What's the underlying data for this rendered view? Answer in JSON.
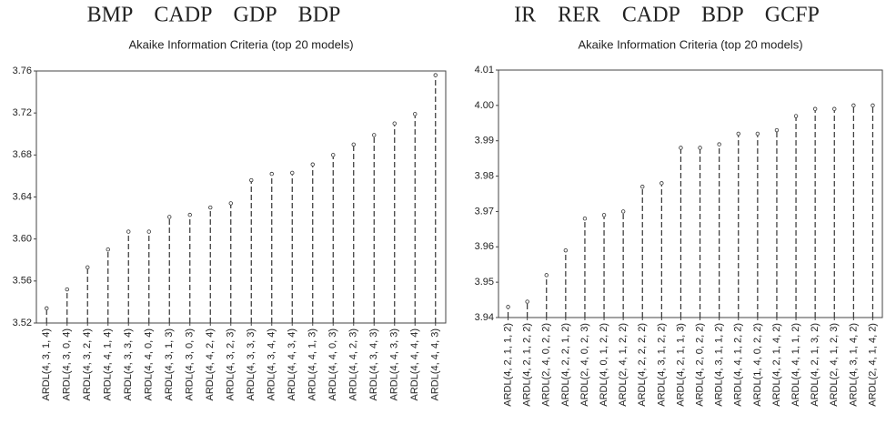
{
  "chart_data": [
    {
      "type": "lollipop",
      "title": "BMP    CADP    GDP    BDP",
      "subtitle": "Akaike Information Criteria (top 20 models)",
      "categories": [
        "ARDL(4, 3, 1, 4)",
        "ARDL(4, 3, 0, 4)",
        "ARDL(4, 3, 2, 4)",
        "ARDL(4, 4, 1, 4)",
        "ARDL(4, 3, 3, 4)",
        "ARDL(4, 4, 0, 4)",
        "ARDL(4, 3, 1, 3)",
        "ARDL(4, 3, 0, 3)",
        "ARDL(4, 4, 2, 4)",
        "ARDL(4, 3, 2, 3)",
        "ARDL(4, 3, 3, 3)",
        "ARDL(4, 3, 4, 4)",
        "ARDL(4, 4, 3, 4)",
        "ARDL(4, 4, 1, 3)",
        "ARDL(4, 4, 0, 3)",
        "ARDL(4, 4, 2, 3)",
        "ARDL(4, 3, 4, 3)",
        "ARDL(4, 4, 3, 3)",
        "ARDL(4, 4, 4, 4)",
        "ARDL(4, 4, 4, 3)"
      ],
      "values": [
        3.534,
        3.552,
        3.573,
        3.59,
        3.607,
        3.607,
        3.621,
        3.623,
        3.63,
        3.634,
        3.656,
        3.662,
        3.663,
        3.671,
        3.68,
        3.69,
        3.699,
        3.71,
        3.719,
        3.756
      ],
      "color": "#333333",
      "ylim": [
        3.52,
        3.76
      ],
      "yticks": [
        3.52,
        3.56,
        {
          "value": 3.6,
          "label": "3.60"
        },
        3.64,
        3.68,
        3.72,
        3.76
      ]
    },
    {
      "type": "lollipop",
      "title": "IR    RER    CADP    BDP    GCFP",
      "subtitle": "Akaike Information Criteria (top 20 models)",
      "categories": [
        "ARDL(4, 2, 1, 1, 2)",
        "ARDL(4, 2, 1, 2, 2)",
        "ARDL(2, 4, 0, 2, 2)",
        "ARDL(4, 2, 2, 1, 2)",
        "ARDL(2, 4, 0, 2, 3)",
        "ARDL(4, 0, 1, 2, 2)",
        "ARDL(2, 4, 1, 2, 2)",
        "ARDL(4, 2, 2, 2, 2)",
        "ARDL(4, 3, 1, 2, 2)",
        "ARDL(4, 2, 1, 1, 3)",
        "ARDL(4, 2, 0, 2, 2)",
        "ARDL(4, 3, 1, 1, 2)",
        "ARDL(4, 4, 1, 2, 2)",
        "ARDL(1, 4, 0, 2, 2)",
        "ARDL(4, 2, 1, 4, 2)",
        "ARDL(4, 4, 1, 1, 2)",
        "ARDL(4, 2, 1, 3, 2)",
        "ARDL(2, 4, 1, 2, 3)",
        "ARDL(4, 3, 1, 4, 2)",
        "ARDL(2, 4, 1, 4, 2)"
      ],
      "values": [
        3.943,
        3.9445,
        3.952,
        3.959,
        3.968,
        3.969,
        3.97,
        3.977,
        3.978,
        3.988,
        3.988,
        3.989,
        3.992,
        3.992,
        3.993,
        3.997,
        3.999,
        3.999,
        4.0,
        4.0
      ],
      "color": "#333333",
      "ylim": [
        3.94,
        4.01
      ],
      "yticks": [
        3.94,
        3.95,
        3.96,
        3.97,
        3.98,
        3.99,
        {
          "value": 4.0,
          "label": "4.00"
        },
        4.01
      ]
    }
  ]
}
